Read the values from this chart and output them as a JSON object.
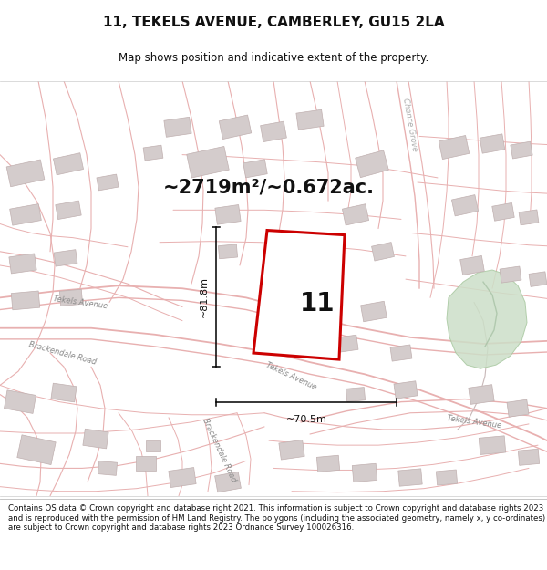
{
  "title": "11, TEKELS AVENUE, CAMBERLEY, GU15 2LA",
  "subtitle": "Map shows position and indicative extent of the property.",
  "area_text": "~2719m²/~0.672ac.",
  "plot_number": "11",
  "dim_height": "~81.8m",
  "dim_width": "~70.5m",
  "footer": "Contains OS data © Crown copyright and database right 2021. This information is subject to Crown copyright and database rights 2023 and is reproduced with the permission of HM Land Registry. The polygons (including the associated geometry, namely x, y co-ordinates) are subject to Crown copyright and database rights 2023 Ordnance Survey 100026316.",
  "map_bg": "#f7f2f2",
  "road_color": "#e8b0b0",
  "building_color": "#d4cccc",
  "building_edge": "#c0b0b0",
  "plot_outline_color": "#cc0000",
  "green_area_color": "#ccdfc8",
  "green_edge": "#a8c8a0",
  "title_color": "#111111",
  "dim_color": "#111111",
  "label_color": "#888888",
  "title_fontsize": 11,
  "subtitle_fontsize": 8.5,
  "area_fontsize": 15,
  "plot_label_fontsize": 20,
  "dim_fontsize": 8,
  "road_label_fontsize": 6,
  "footer_fontsize": 6.2
}
